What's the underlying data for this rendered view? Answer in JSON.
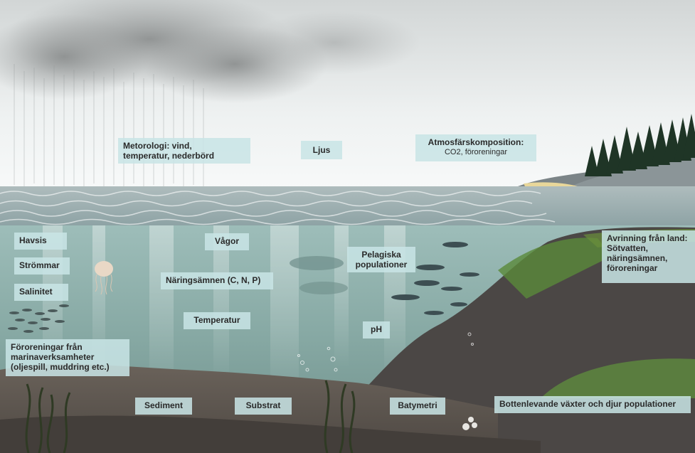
{
  "labels": {
    "metorologi": [
      "Metorologi: vind,",
      "temperatur, nederbörd"
    ],
    "ljus": "Ljus",
    "atmosfar_title": "Atmosfärskomposition:",
    "atmosfar_sub": "CO2, föroreningar",
    "havsis": "Havsis",
    "strommar": "Strömmar",
    "salinitet": "Salinitet",
    "vagor": "Vågor",
    "naringsamnen": "Näringsämnen (C, N, P)",
    "temperatur": "Temperatur",
    "pelagiska": [
      "Pelagiska",
      "populationer"
    ],
    "avrinning": [
      "Avrinning från land:",
      "Sötvatten,",
      "näringsämnen,",
      "föroreningar"
    ],
    "ph": "pH",
    "fororeningar_marin": [
      "Föroreningar från",
      "marinaverksamheter",
      "(oljespill, muddring etc.)"
    ],
    "sediment": "Sediment",
    "substrat": "Substrat",
    "batymetri": "Batymetri",
    "bottenlevande": "Bottenlevande växter och djur populationer"
  },
  "colors": {
    "sky_top": "#d9dcdc",
    "sky_bottom": "#f4f6f6",
    "water_top": "#8fb3b0",
    "water_bottom": "#6f918c",
    "seafloor": "#5d5750",
    "rock": "#4a4644",
    "moss": "#5a8a3a",
    "label_bg": "#c8e4e5"
  },
  "icons": [
    "jellyfish-icon",
    "fish-school-icon",
    "tree-icon",
    "seaweed-icon",
    "bubble-icon"
  ]
}
